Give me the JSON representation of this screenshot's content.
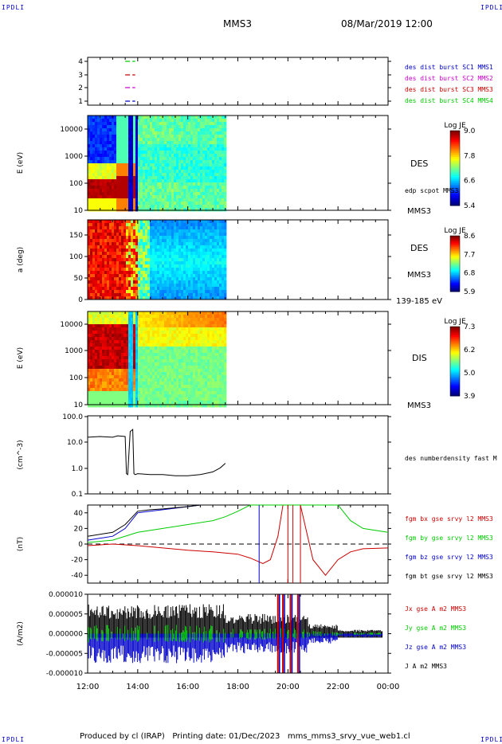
{
  "header": {
    "corner_tl": "IPDLI",
    "corner_tr": "IPDLI",
    "corner_bl": "IPDLI",
    "corner_br": "IPDLI",
    "mission": "MMS3",
    "datetime": "08/Mar/2019 12:00"
  },
  "footer": {
    "text": "Produced by cl (IRAP)   Printing date: 01/Dec/2023   mms_mms3_srvy_vue_web1.cl"
  },
  "colors": {
    "black": "#000000",
    "red": "#cc0000",
    "green": "#00cc00",
    "blue": "#0000cc",
    "magenta": "#cc00cc"
  },
  "chart_data": [
    {
      "type": "scatter",
      "panel": "burst-flags",
      "yticks": [
        "4",
        "3",
        "2",
        "1"
      ],
      "ylim": [
        0.6,
        4.6
      ],
      "legend": [
        {
          "label": "des dist burst SC1 MMS1",
          "color": "#0000cc"
        },
        {
          "label": "des dist burst SC2 MMS2",
          "color": "#cc00cc"
        },
        {
          "label": "des dist burst SC3 MMS3",
          "color": "#cc0000"
        },
        {
          "label": "des dist burst SC4 MMS4",
          "color": "#00cc00"
        }
      ],
      "series": [
        {
          "y": 4,
          "x": [
            13.5,
            13.9
          ],
          "color": "#00cc00"
        },
        {
          "y": 3,
          "x": [
            13.5,
            13.9
          ],
          "color": "#cc0000"
        },
        {
          "y": 2,
          "x": [
            13.5,
            13.9
          ],
          "color": "#cc00cc"
        },
        {
          "y": 1,
          "x": [
            13.5,
            13.9
          ],
          "color": "#0000cc"
        }
      ]
    },
    {
      "type": "heatmap",
      "panel": "des-energy",
      "ylabel": "E (eV)",
      "yscale": "log",
      "ylim": [
        10,
        30000
      ],
      "yticks": [
        "10000",
        "1000",
        "100",
        "10"
      ],
      "data_until_hour": 17.5,
      "right_labels": [
        "DES",
        "edp scpot MMS3",
        "MMS3"
      ],
      "colorbar": {
        "title": "Log JE",
        "ticks": [
          "9.0",
          "7.8",
          "6.6",
          "5.4"
        ]
      }
    },
    {
      "type": "heatmap",
      "panel": "des-pitch",
      "ylabel": "a (deg)",
      "ylim": [
        0,
        180
      ],
      "yticks": [
        "150",
        "100",
        "50",
        "0"
      ],
      "data_until_hour": 17.5,
      "right_labels": [
        "DES",
        "MMS3",
        "139-185 eV"
      ],
      "colorbar": {
        "title": "Log JE",
        "ticks": [
          "8.6",
          "7.7",
          "6.8",
          "5.9"
        ]
      }
    },
    {
      "type": "heatmap",
      "panel": "dis-energy",
      "ylabel": "E (eV)",
      "yscale": "log",
      "ylim": [
        10,
        30000
      ],
      "yticks": [
        "10000",
        "1000",
        "100",
        "10"
      ],
      "data_until_hour": 17.5,
      "right_labels": [
        "DIS",
        "MMS3"
      ],
      "colorbar": {
        "title": "Log JE",
        "ticks": [
          "7.3",
          "6.2",
          "5.0",
          "3.9"
        ]
      }
    },
    {
      "type": "line",
      "panel": "density",
      "ylabel": "(cm^-3)",
      "yscale": "log",
      "ylim": [
        0.1,
        100
      ],
      "yticks": [
        "100.0",
        "10.0",
        "1.0",
        "0.1"
      ],
      "right_labels": [
        "des numberdensity fast M"
      ],
      "series": [
        {
          "color": "#000000",
          "x": [
            12.0,
            12.5,
            13.0,
            13.2,
            13.5,
            13.55,
            13.6,
            13.7,
            13.8,
            13.85,
            13.9,
            14.0,
            14.5,
            15.0,
            15.5,
            16.0,
            16.5,
            17.0,
            17.3,
            17.5
          ],
          "y": [
            15,
            16,
            15,
            17,
            16,
            0.6,
            0.55,
            25,
            30,
            0.6,
            0.55,
            0.6,
            0.55,
            0.55,
            0.5,
            0.5,
            0.55,
            0.7,
            1.0,
            1.5
          ]
        }
      ]
    },
    {
      "type": "line",
      "panel": "fgm-b",
      "ylabel": "(nT)",
      "ylim": [
        -50,
        50
      ],
      "yticks": [
        "40",
        "20",
        "0",
        "-20",
        "-40"
      ],
      "legend": [
        {
          "label": "fgm bx gse srvy l2 MMS3",
          "color": "#cc0000"
        },
        {
          "label": "fgm by gse srvy l2 MMS3",
          "color": "#00cc00"
        },
        {
          "label": "fgm bz gse srvy l2 MMS3",
          "color": "#0000cc"
        },
        {
          "label": "fgm bt gse srvy l2 MMS3",
          "color": "#000000"
        }
      ],
      "series": [
        {
          "name": "fgm bx gse srvy l2 MMS3",
          "color": "#cc0000",
          "x": [
            12.0,
            13.0,
            14.0,
            15.0,
            16.0,
            17.0,
            18.0,
            18.5,
            19.0,
            19.3,
            19.6,
            19.8,
            20.5,
            21.0,
            21.5,
            22.0,
            22.5,
            23.0,
            24.0
          ],
          "y": [
            -2,
            0,
            -2,
            -5,
            -8,
            -10,
            -13,
            -18,
            -25,
            -20,
            10,
            50,
            50,
            -20,
            -40,
            -20,
            -10,
            -6,
            -5
          ]
        },
        {
          "name": "fgm by gse srvy l2 MMS3",
          "color": "#00cc00",
          "x": [
            12.0,
            13.0,
            14.0,
            15.0,
            16.0,
            17.0,
            17.5,
            18.0,
            18.5,
            22.0,
            22.5,
            23.0,
            24.0
          ],
          "y": [
            2,
            5,
            15,
            20,
            25,
            30,
            35,
            42,
            50,
            50,
            30,
            20,
            15
          ]
        },
        {
          "name": "fgm bz gse srvy l2 MMS3",
          "color": "#0000cc",
          "x": [
            12.0,
            13.0,
            13.5,
            14.0,
            14.5,
            15.0,
            16.0,
            16.5
          ],
          "y": [
            5,
            10,
            20,
            40,
            42,
            44,
            48,
            50
          ]
        },
        {
          "name": "fgm bt gse srvy l2 MMS3",
          "color": "#000000",
          "x": [
            12.0,
            13.0,
            13.5,
            14.0,
            14.5,
            15.0,
            16.0,
            16.5
          ],
          "y": [
            10,
            15,
            25,
            42,
            44,
            45,
            48,
            50
          ]
        }
      ],
      "vertical_markers": [
        {
          "x": 18.85,
          "color": "#0000cc"
        },
        {
          "x": 20.0,
          "color": "#cc0000"
        },
        {
          "x": 20.2,
          "color": "#cc0000"
        },
        {
          "x": 20.5,
          "color": "#cc0000"
        }
      ],
      "zero_line": true
    },
    {
      "type": "line",
      "panel": "current-density",
      "ylabel": "(A/m2)",
      "ylim": [
        -1e-05,
        1e-05
      ],
      "yticks": [
        "0.000010",
        "0.000005",
        "0.000000",
        "-0.000005",
        "-0.000010"
      ],
      "legend": [
        {
          "label": "Jx gse A m2 MMS3",
          "color": "#cc0000"
        },
        {
          "label": "Jy gse A m2 MMS3",
          "color": "#00cc00"
        },
        {
          "label": "Jz gse A m2 MMS3",
          "color": "#0000cc"
        },
        {
          "label": "J A m2 MMS3",
          "color": "#000000"
        }
      ],
      "x_range": [
        12,
        24
      ],
      "xticks": [
        "12:00",
        "14:00",
        "16:00",
        "18:00",
        "20:00",
        "22:00",
        "00:00"
      ]
    }
  ]
}
